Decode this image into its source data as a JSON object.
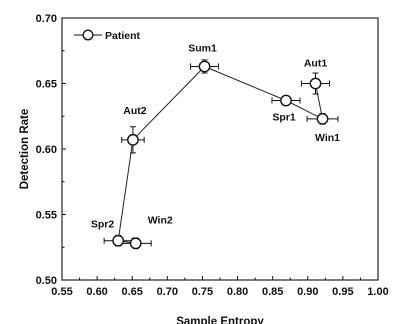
{
  "chart_data": {
    "type": "scatter",
    "xlabel": "Sample Entropy",
    "ylabel": "Detection Rate",
    "xlim": [
      0.55,
      1.0
    ],
    "ylim": [
      0.5,
      0.7
    ],
    "x_ticks": [
      "0.55",
      "0.60",
      "0.65",
      "0.70",
      "0.75",
      "0.80",
      "0.85",
      "0.90",
      "0.95",
      "1.00"
    ],
    "y_ticks": [
      "0.50",
      "0.55",
      "0.60",
      "0.65",
      "0.70"
    ],
    "legend": {
      "label": "Patient",
      "position": "top-left"
    },
    "grid": false,
    "series": [
      {
        "name": "Patient",
        "connected": true,
        "points": [
          {
            "label": "Win2",
            "x": 0.655,
            "y": 0.528,
            "xerr": 0.022,
            "yerr": 0.004
          },
          {
            "label": "Spr2",
            "x": 0.63,
            "y": 0.53,
            "xerr": 0.02,
            "yerr": 0.004
          },
          {
            "label": "Aut2",
            "x": 0.651,
            "y": 0.607,
            "xerr": 0.016,
            "yerr": 0.01
          },
          {
            "label": "Sum1",
            "x": 0.753,
            "y": 0.663,
            "xerr": 0.02,
            "yerr": 0.005
          },
          {
            "label": "Spr1",
            "x": 0.869,
            "y": 0.637,
            "xerr": 0.02,
            "yerr": 0.003
          },
          {
            "label": "Win1",
            "x": 0.921,
            "y": 0.623,
            "xerr": 0.022,
            "yerr": 0.004
          },
          {
            "label": "Aut1",
            "x": 0.911,
            "y": 0.65,
            "xerr": 0.02,
            "yerr": 0.008,
            "label_color": "#e8141d"
          }
        ]
      }
    ]
  }
}
